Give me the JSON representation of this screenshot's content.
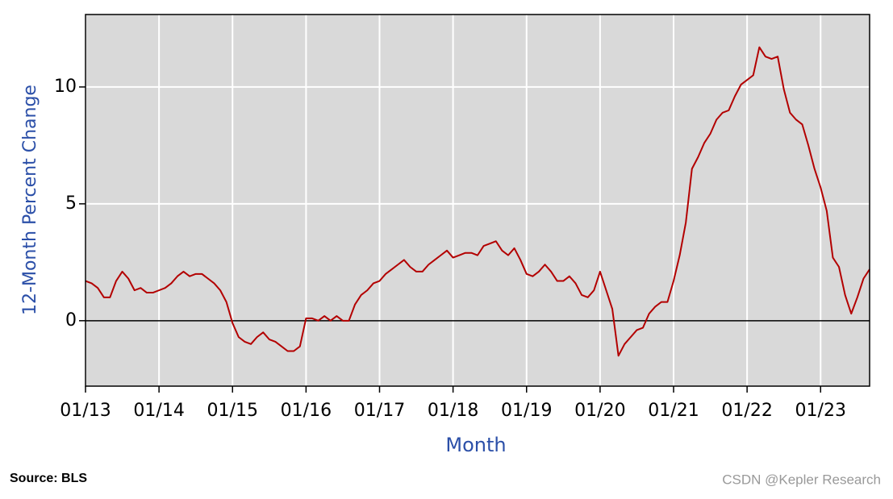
{
  "chart_data": {
    "type": "line",
    "y_label": "12-Month Percent Change",
    "x_label": "Month",
    "source": "Source: BLS",
    "watermark": "CSDN @Kepler Research",
    "x": [
      "01/13",
      "02/13",
      "03/13",
      "04/13",
      "05/13",
      "06/13",
      "07/13",
      "08/13",
      "09/13",
      "10/13",
      "11/13",
      "12/13",
      "01/14",
      "02/14",
      "03/14",
      "04/14",
      "05/14",
      "06/14",
      "07/14",
      "08/14",
      "09/14",
      "10/14",
      "11/14",
      "12/14",
      "01/15",
      "02/15",
      "03/15",
      "04/15",
      "05/15",
      "06/15",
      "07/15",
      "08/15",
      "09/15",
      "10/15",
      "11/15",
      "12/15",
      "01/16",
      "02/16",
      "03/16",
      "04/16",
      "05/16",
      "06/16",
      "07/16",
      "08/16",
      "09/16",
      "10/16",
      "11/16",
      "12/16",
      "01/17",
      "02/17",
      "03/17",
      "04/17",
      "05/17",
      "06/17",
      "07/17",
      "08/17",
      "09/17",
      "10/17",
      "11/17",
      "12/17",
      "01/18",
      "02/18",
      "03/18",
      "04/18",
      "05/18",
      "06/18",
      "07/18",
      "08/18",
      "09/18",
      "10/18",
      "11/18",
      "12/18",
      "01/19",
      "02/19",
      "03/19",
      "04/19",
      "05/19",
      "06/19",
      "07/19",
      "08/19",
      "09/19",
      "10/19",
      "11/19",
      "12/19",
      "01/20",
      "02/20",
      "03/20",
      "04/20",
      "05/20",
      "06/20",
      "07/20",
      "08/20",
      "09/20",
      "10/20",
      "11/20",
      "12/20",
      "01/21",
      "02/21",
      "03/21",
      "04/21",
      "05/21",
      "06/21",
      "07/21",
      "08/21",
      "09/21",
      "10/21",
      "11/21",
      "12/21",
      "01/22",
      "02/22",
      "03/22",
      "04/22",
      "05/22",
      "06/22",
      "07/22",
      "08/22",
      "09/22",
      "10/22",
      "11/22",
      "12/22",
      "01/23",
      "02/23",
      "03/23",
      "04/23",
      "05/23",
      "06/23",
      "07/23",
      "08/23",
      "09/23"
    ],
    "series": [
      {
        "name": "12-Month Percent Change",
        "color": "#b30000",
        "values": [
          1.7,
          1.6,
          1.4,
          1.0,
          1.0,
          1.7,
          2.1,
          1.8,
          1.3,
          1.4,
          1.2,
          1.2,
          1.3,
          1.4,
          1.6,
          1.9,
          2.1,
          1.9,
          2.0,
          2.0,
          1.8,
          1.6,
          1.3,
          0.8,
          -0.1,
          -0.7,
          -0.9,
          -1.0,
          -0.7,
          -0.5,
          -0.8,
          -0.9,
          -1.1,
          -1.3,
          -1.3,
          -1.1,
          0.1,
          0.1,
          0.0,
          0.2,
          0.0,
          0.2,
          0.0,
          0.0,
          0.7,
          1.1,
          1.3,
          1.6,
          1.7,
          2.0,
          2.2,
          2.4,
          2.6,
          2.3,
          2.1,
          2.1,
          2.4,
          2.6,
          2.8,
          3.0,
          2.7,
          2.8,
          2.9,
          2.9,
          2.8,
          3.2,
          3.3,
          3.4,
          3.0,
          2.8,
          3.1,
          2.6,
          2.0,
          1.9,
          2.1,
          2.4,
          2.1,
          1.7,
          1.7,
          1.9,
          1.6,
          1.1,
          1.0,
          1.3,
          2.1,
          1.3,
          0.5,
          -1.5,
          -1.0,
          -0.7,
          -0.4,
          -0.3,
          0.3,
          0.6,
          0.8,
          0.8,
          1.7,
          2.8,
          4.2,
          6.5,
          7.0,
          7.6,
          8.0,
          8.6,
          8.9,
          9.0,
          9.6,
          10.1,
          10.3,
          10.5,
          11.7,
          11.3,
          11.2,
          11.3,
          9.9,
          8.9,
          8.6,
          8.4,
          7.5,
          6.5,
          5.7,
          4.7,
          2.7,
          2.3,
          1.1,
          0.3,
          1.0,
          1.8,
          2.2
        ]
      }
    ],
    "xticks": [
      "01/13",
      "01/14",
      "01/15",
      "01/16",
      "01/17",
      "01/18",
      "01/19",
      "01/20",
      "01/21",
      "01/22",
      "01/23"
    ],
    "ylim": [
      -2.8,
      13.1
    ],
    "yticks": [
      0,
      5,
      10
    ],
    "grid": true,
    "zero_line": true
  }
}
